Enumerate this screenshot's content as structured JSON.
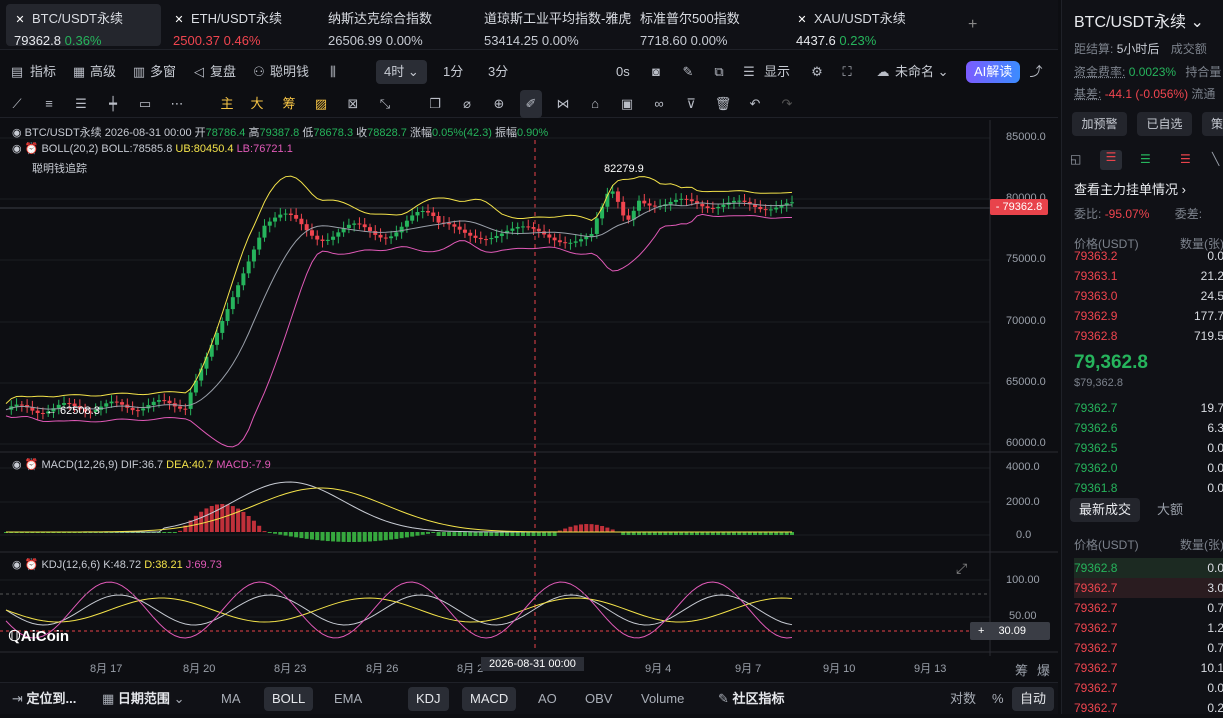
{
  "tickers": [
    {
      "name": "BTC/USDT永续",
      "price": "79362.8",
      "change": "0.36%",
      "dir": "up",
      "icon": "x-mark-icon"
    },
    {
      "name": "ETH/USDT永续",
      "price": "2500.37",
      "change": "0.46%",
      "dir": "dn",
      "icon": "x-mark-icon"
    },
    {
      "name": "纳斯达克综合指数",
      "price": "26506.99",
      "change": "0.00%",
      "dir": "flat"
    },
    {
      "name": "道琼斯工业平均指数-雅虎",
      "price": "53414.25",
      "change": "0.00%",
      "dir": "flat"
    },
    {
      "name": "标准普尔500指数",
      "price": "7718.60",
      "change": "0.00%",
      "dir": "flat"
    },
    {
      "name": "XAU/USDT永续",
      "price": "4437.6",
      "change": "0.23%",
      "dir": "up",
      "icon": "x-mark-icon"
    }
  ],
  "add_tab": "+",
  "toolbar": {
    "indicator": "指标",
    "advanced": "高级",
    "multi_window": "多窗",
    "replay": "复盘",
    "smart_money": "聪明钱",
    "interval": "4时",
    "i1": "1分",
    "i3": "3分",
    "zero": "0s",
    "display": "显示",
    "layout_name": "未命名",
    "ai": "AI解读"
  },
  "drawing_tools": [
    "主",
    "大",
    "筹"
  ],
  "chart": {
    "header": {
      "symbol": "BTC/USDT永续",
      "time": "2026-08-31 00:00",
      "open_l": "开",
      "open": "78786.4",
      "high_l": "高",
      "high": "79387.8",
      "low_l": "低",
      "low": "78678.3",
      "close_l": "收",
      "close": "78828.7",
      "chg_l": "涨幅",
      "chg": "0.05%(42.3)",
      "amp_l": "振幅",
      "amp": "0.90%"
    },
    "boll": {
      "name": "BOLL(20,2)",
      "boll": "BOLL:78585.8",
      "ub": "UB:80450.4",
      "lb": "LB:76721.1"
    },
    "smart": "聪明钱追踪",
    "max_label": "82279.9",
    "min_label": "← 62508.3",
    "last_price": "79362.8",
    "y_ticks": [
      "85000.0",
      "80000.0",
      "75000.0",
      "70000.0",
      "65000.0",
      "60000.0"
    ],
    "macd": {
      "name": "MACD(12,26,9)",
      "dif": "DIF:36.7",
      "dea": "DEA:40.7",
      "macd": "MACD:-7.9",
      "ticks": [
        "4000.0",
        "2000.0",
        "0.0"
      ]
    },
    "kdj": {
      "name": "KDJ(12,6,6)",
      "k": "K:48.72",
      "d": "D:38.21",
      "j": "J:69.73",
      "ticks": [
        "100.00",
        "50.00"
      ],
      "current": "30.09"
    },
    "x_ticks": [
      "8月 17",
      "8月 20",
      "8月 23",
      "8月 26",
      "8月 2",
      "9月 4",
      "9月 7",
      "9月 10",
      "9月 13"
    ],
    "crosshair_time": "2026-08-31 00:00",
    "logo": "AiCoin",
    "corner": [
      "筹",
      "爆"
    ]
  },
  "bottom": {
    "locate": "定位到...",
    "range": "日期范围",
    "tabs": [
      "MA",
      "BOLL",
      "EMA",
      "KDJ",
      "MACD",
      "AO",
      "OBV",
      "Volume"
    ],
    "community": "社区指标",
    "log": "对数",
    "pct": "%",
    "auto": "自动"
  },
  "panel": {
    "title": "BTC/USDT永续",
    "settle_l": "距结算:",
    "settle": "5小时后",
    "vol_l": "成交额",
    "funding_l": "资金费率:",
    "funding": "0.0023%",
    "oi_l": "持合量",
    "basis_l": "基差:",
    "basis": "-44.1 (-0.056%)",
    "fl": "流通",
    "btn_alert": "加预警",
    "btn_fav": "已自选",
    "btn_x": "策",
    "depth_title": "查看主力挂单情况",
    "ratio_l": "委比:",
    "ratio": "-95.07%",
    "diff_l": "委差:",
    "price_h": "价格(USDT)",
    "qty_h": "数量(张)",
    "asks": [
      [
        "79363.2",
        "0.0"
      ],
      [
        "79363.1",
        "21.2"
      ],
      [
        "79363.0",
        "24.5"
      ],
      [
        "79362.9",
        "177.7"
      ],
      [
        "79362.8",
        "719.5"
      ]
    ],
    "mid": "79,362.8",
    "mid_sub": "$79,362.8",
    "bids": [
      [
        "79362.7",
        "19.7"
      ],
      [
        "79362.6",
        "6.3"
      ],
      [
        "79362.5",
        "0.0"
      ],
      [
        "79362.0",
        "0.0"
      ],
      [
        "79361.8",
        "0.0"
      ]
    ],
    "trades_tab": "最新成交",
    "big_tab": "大额",
    "trades": [
      [
        "79362.8",
        "0.0",
        "up"
      ],
      [
        "79362.7",
        "3.0",
        "dn"
      ],
      [
        "79362.7",
        "0.7",
        "dn"
      ],
      [
        "79362.7",
        "1.2",
        "dn"
      ],
      [
        "79362.7",
        "0.7",
        "dn"
      ],
      [
        "79362.7",
        "10.1",
        "dn"
      ],
      [
        "79362.7",
        "0.0",
        "dn"
      ],
      [
        "79362.7",
        "0.2",
        "dn"
      ]
    ]
  }
}
